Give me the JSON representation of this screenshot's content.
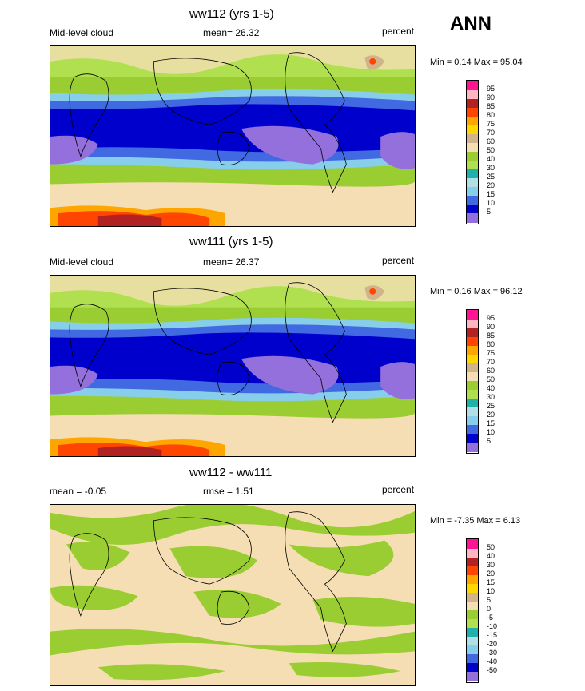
{
  "season": "ANN",
  "panels": [
    {
      "title": "ww112 (yrs 1-5)",
      "left_label": "Mid-level cloud",
      "mean_label": "mean=  26.32",
      "units": "percent",
      "minmax": "Min =   0.14 Max =   95.04",
      "legend_ticks": [
        "95",
        "90",
        "85",
        "80",
        "75",
        "70",
        "60",
        "50",
        "40",
        "30",
        "25",
        "20",
        "15",
        "10",
        "5"
      ]
    },
    {
      "title": "ww111 (yrs 1-5)",
      "left_label": "Mid-level cloud",
      "mean_label": "mean=  26.37",
      "units": "percent",
      "minmax": "Min =   0.16 Max =   96.12",
      "legend_ticks": [
        "95",
        "90",
        "85",
        "80",
        "75",
        "70",
        "60",
        "50",
        "40",
        "30",
        "25",
        "20",
        "15",
        "10",
        "5"
      ]
    },
    {
      "title": "ww112 - ww111",
      "left_label": "mean =  -0.05",
      "mean_label": "rmse =    1.51",
      "units": "percent",
      "minmax": "Min =  -7.35 Max =   6.13",
      "legend_ticks": [
        "50",
        "40",
        "30",
        "20",
        "15",
        "10",
        "5",
        "0",
        "-5",
        "-10",
        "-15",
        "-20",
        "-30",
        "-40",
        "-50"
      ]
    }
  ],
  "colors": {
    "scale": [
      "#ff1493",
      "#ffb6c1",
      "#b22222",
      "#ff4500",
      "#ffa500",
      "#ffd700",
      "#d2b48c",
      "#f5deb3",
      "#9acd32",
      "#b0e050",
      "#20b2aa",
      "#b0e0e6",
      "#87ceeb",
      "#4169e1",
      "#0000cd",
      "#9370db"
    ],
    "land_line": "#000000"
  }
}
